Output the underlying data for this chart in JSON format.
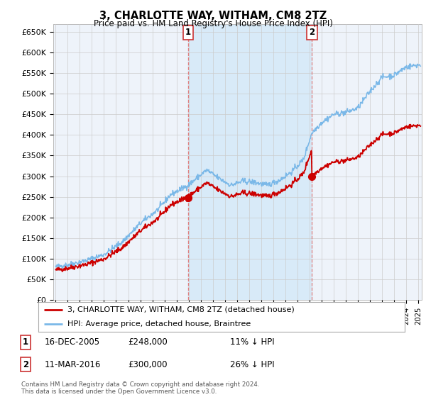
{
  "title": "3, CHARLOTTE WAY, WITHAM, CM8 2TZ",
  "subtitle": "Price paid vs. HM Land Registry's House Price Index (HPI)",
  "ylabel_ticks": [
    "£0",
    "£50K",
    "£100K",
    "£150K",
    "£200K",
    "£250K",
    "£300K",
    "£350K",
    "£400K",
    "£450K",
    "£500K",
    "£550K",
    "£600K",
    "£650K"
  ],
  "ytick_values": [
    0,
    50000,
    100000,
    150000,
    200000,
    250000,
    300000,
    350000,
    400000,
    450000,
    500000,
    550000,
    600000,
    650000
  ],
  "ylim": [
    0,
    670000
  ],
  "xlim_start": 1994.8,
  "xlim_end": 2025.3,
  "marker1_x": 2005.96,
  "marker1_y": 248000,
  "marker2_x": 2016.2,
  "marker2_y": 300000,
  "legend_line1": "3, CHARLOTTE WAY, WITHAM, CM8 2TZ (detached house)",
  "legend_line2": "HPI: Average price, detached house, Braintree",
  "table_row1": [
    "1",
    "16-DEC-2005",
    "£248,000",
    "11% ↓ HPI"
  ],
  "table_row2": [
    "2",
    "11-MAR-2016",
    "£300,000",
    "26% ↓ HPI"
  ],
  "footer": "Contains HM Land Registry data © Crown copyright and database right 2024.\nThis data is licensed under the Open Government Licence v3.0.",
  "hpi_color": "#7ab8e8",
  "hpi_fill_color": "#d8eaf8",
  "price_color": "#cc0000",
  "dashed_color": "#e08080",
  "grid_color": "#cccccc",
  "background_color": "#ffffff",
  "plot_bg_color": "#eef3fa"
}
